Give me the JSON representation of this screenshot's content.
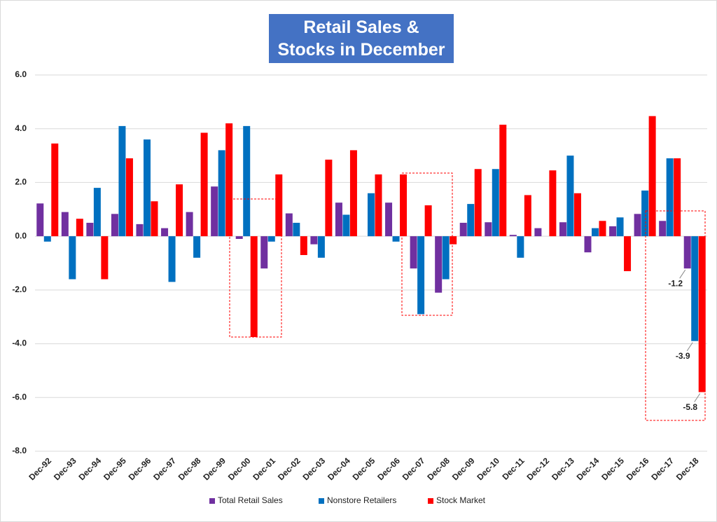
{
  "chart_data": {
    "type": "bar",
    "title": "Retail Sales & Stocks in December",
    "categories": [
      "Dec-92",
      "Dec-93",
      "Dec-94",
      "Dec-95",
      "Dec-96",
      "Dec-97",
      "Dec-98",
      "Dec-99",
      "Dec-00",
      "Dec-01",
      "Dec-02",
      "Dec-03",
      "Dec-04",
      "Dec-05",
      "Dec-06",
      "Dec-07",
      "Dec-08",
      "Dec-09",
      "Dec-10",
      "Dec-11",
      "Dec-12",
      "Dec-13",
      "Dec-14",
      "Dec-15",
      "Dec-16",
      "Dec-17",
      "Dec-18"
    ],
    "series": [
      {
        "name": "Total Retail Sales",
        "color": "#7030a0",
        "values": [
          1.22,
          0.9,
          0.5,
          0.83,
          0.45,
          0.3,
          0.9,
          1.85,
          -0.1,
          -1.2,
          0.85,
          -0.3,
          1.25,
          0,
          1.25,
          -1.2,
          -2.1,
          0.5,
          0.52,
          0.05,
          0.3,
          0.52,
          -0.6,
          0.37,
          0.83,
          0.57,
          -1.2
        ],
        "value_labels": [
          null,
          null,
          null,
          null,
          null,
          null,
          null,
          null,
          null,
          null,
          null,
          null,
          null,
          null,
          null,
          null,
          null,
          null,
          null,
          null,
          null,
          null,
          null,
          null,
          null,
          null,
          "-1.2"
        ]
      },
      {
        "name": "Nonstore Retailers",
        "color": "#0070c0",
        "values": [
          -0.2,
          -1.6,
          1.8,
          4.1,
          3.6,
          -1.7,
          -0.8,
          3.2,
          4.1,
          -0.2,
          0.5,
          -0.8,
          0.8,
          1.6,
          -0.2,
          -2.9,
          -1.6,
          1.2,
          2.5,
          -0.8,
          0,
          3.0,
          0.3,
          0.7,
          1.7,
          2.9,
          -3.9
        ],
        "value_labels": [
          null,
          null,
          null,
          null,
          null,
          null,
          null,
          null,
          null,
          null,
          null,
          null,
          null,
          null,
          null,
          null,
          null,
          null,
          null,
          null,
          null,
          null,
          null,
          null,
          null,
          null,
          "-3.9"
        ]
      },
      {
        "name": "Stock Market",
        "color": "#ff0000",
        "values": [
          3.45,
          0.65,
          -1.6,
          2.9,
          1.3,
          1.93,
          3.85,
          4.2,
          -3.75,
          2.3,
          -0.7,
          2.85,
          3.2,
          2.3,
          2.3,
          1.15,
          -0.3,
          2.5,
          4.15,
          1.53,
          2.45,
          1.6,
          0.57,
          -1.3,
          4.47,
          2.9,
          -5.8
        ],
        "value_labels": [
          null,
          null,
          null,
          null,
          null,
          null,
          null,
          null,
          null,
          null,
          null,
          null,
          null,
          null,
          null,
          null,
          null,
          null,
          null,
          null,
          null,
          null,
          null,
          null,
          null,
          null,
          "-5.8"
        ]
      }
    ],
    "ylim": [
      -8,
      6
    ],
    "yticks": [
      {
        "value": -8,
        "label": "-8.0"
      },
      {
        "value": -6,
        "label": "-6.0"
      },
      {
        "value": -4,
        "label": "-4.0"
      },
      {
        "value": -2,
        "label": "-2.0"
      },
      {
        "value": 0,
        "label": "0.0"
      },
      {
        "value": 2,
        "label": "2.0"
      },
      {
        "value": 4,
        "label": "4.0"
      },
      {
        "value": 6,
        "label": "6.0"
      }
    ],
    "grid": true,
    "legend": "bottom"
  }
}
